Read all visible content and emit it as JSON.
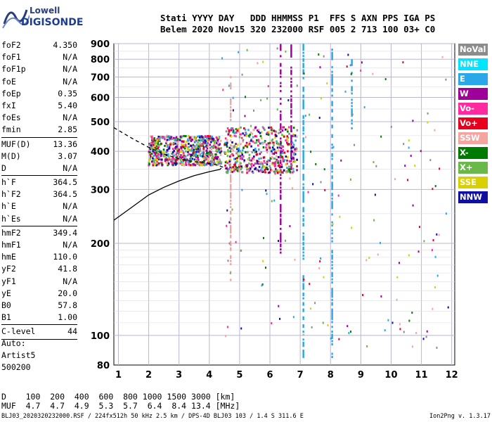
{
  "logo": {
    "top": "Lowell",
    "bottom": "DIGISONDE"
  },
  "header": {
    "line1": "Stati YYYY DAY   DDD HHMMSS P1  FFS S AXN PPS IGA PS",
    "line2": "Belem 2020 Nov15 320 232000 RSF 005 2 713 100 03+ C0"
  },
  "params": [
    {
      "label": "foF2",
      "value": "4.350"
    },
    {
      "label": "foF1",
      "value": "N/A"
    },
    {
      "label": "foF1p",
      "value": "N/A"
    },
    {
      "label": "foE",
      "value": "N/A"
    },
    {
      "label": "foEp",
      "value": "0.35"
    },
    {
      "label": "fxI",
      "value": "5.40"
    },
    {
      "label": "foEs",
      "value": "N/A"
    },
    {
      "label": "fmin",
      "value": "2.85"
    },
    {
      "sep": true
    },
    {
      "label": "MUF(D)",
      "value": "13.36"
    },
    {
      "label": "M(D)",
      "value": "3.07"
    },
    {
      "label": "D",
      "value": "N/A"
    },
    {
      "sep": true
    },
    {
      "label": "h`F",
      "value": "364.5"
    },
    {
      "label": "h`F2",
      "value": "364.5"
    },
    {
      "label": "h`E",
      "value": "N/A"
    },
    {
      "label": "h`Es",
      "value": "N/A"
    },
    {
      "sep": true
    },
    {
      "label": "hmF2",
      "value": "349.4"
    },
    {
      "label": "hmF1",
      "value": "N/A"
    },
    {
      "label": "hmE",
      "value": "110.0"
    },
    {
      "label": "yF2",
      "value": "41.8"
    },
    {
      "label": "yF1",
      "value": "N/A"
    },
    {
      "label": "yE",
      "value": "20.0"
    },
    {
      "label": "B0",
      "value": "57.8"
    },
    {
      "label": "B1",
      "value": "1.00"
    },
    {
      "sep": true
    },
    {
      "label": "C-level",
      "value": "44"
    },
    {
      "sep": true
    }
  ],
  "auto": {
    "l1": "Auto:",
    "l2": "Artist5",
    "l3": "500200"
  },
  "legend": [
    {
      "label": "NoVal",
      "color": "#8c8c8c"
    },
    {
      "label": "NNE",
      "color": "#00e5ff"
    },
    {
      "label": "E",
      "color": "#2aa7e8"
    },
    {
      "label": "W",
      "color": "#a0009a"
    },
    {
      "label": "Vo-",
      "color": "#ff2aa0"
    },
    {
      "label": "Vo+",
      "color": "#e8001e"
    },
    {
      "label": "SSW",
      "color": "#f5a5a0"
    },
    {
      "label": "X-",
      "color": "#007a00"
    },
    {
      "label": "X+",
      "color": "#6bb84a"
    },
    {
      "label": "SSE",
      "color": "#d8d000"
    },
    {
      "label": "NNW",
      "color": "#1010a0"
    }
  ],
  "muf_table": {
    "d_line": "D    100  200  400  600  800 1000 1500 3000 [km]",
    "m_line": "MUF  4.7  4.7  4.9  5.3  5.7  6.4  8.4 13.4 [MHz]"
  },
  "footer": {
    "left": "BLJ03_2020320232000.RSF / 224fx512h 50 kHz 2.5 km / DPS-4D BLJ03 103 / 1.4 S 311.6 E",
    "right": "Ion2Png v. 1.3.17"
  },
  "chart_data": {
    "type": "scatter",
    "xlim": [
      0.85,
      12.1
    ],
    "ylim": [
      80,
      900
    ],
    "xticks": [
      1,
      2,
      3,
      4,
      5,
      6,
      7,
      8,
      9,
      10,
      11,
      12
    ],
    "yticks": [
      80,
      100,
      200,
      300,
      400,
      500,
      600,
      700,
      800,
      900
    ],
    "yscale": "log",
    "grid": true,
    "ionogram_traces": [
      {
        "desc": "F2 trace (X-mode cluster)",
        "fmin": 2.0,
        "fmax": 4.4,
        "hmin": 360,
        "hmax": 450
      },
      {
        "desc": "spread F",
        "fmin": 4.5,
        "fmax": 6.9,
        "hmin": 340,
        "hmax": 480
      }
    ],
    "profile_solid": {
      "x": [
        0.85,
        1.5,
        2.0,
        2.5,
        3.0,
        3.5,
        4.0,
        4.35,
        4.4
      ],
      "y": [
        238,
        265,
        288,
        305,
        320,
        333,
        343,
        349,
        353
      ]
    },
    "profile_dashed": {
      "x": [
        0.85,
        1.5,
        2.0,
        2.5,
        3.0,
        3.5,
        4.0,
        4.3,
        4.6
      ],
      "y": [
        478,
        438,
        412,
        392,
        378,
        370,
        365,
        360,
        350
      ]
    },
    "vertical_streaks": [
      {
        "f": 4.7,
        "hmin": 150,
        "hmax": 700,
        "color": "#f5a5a0"
      },
      {
        "f": 6.35,
        "hmin": 180,
        "hmax": 900,
        "color": "#a0009a"
      },
      {
        "f": 7.1,
        "hmin": 85,
        "hmax": 900,
        "color": "#2aa7e8"
      },
      {
        "f": 8.05,
        "hmin": 85,
        "hmax": 860,
        "color": "#2aa7e8"
      },
      {
        "f": 8.7,
        "hmin": 470,
        "hmax": 800,
        "color": "#2aa7e8"
      },
      {
        "f": 6.7,
        "hmin": 350,
        "hmax": 900,
        "color": "#a0009a"
      }
    ]
  }
}
